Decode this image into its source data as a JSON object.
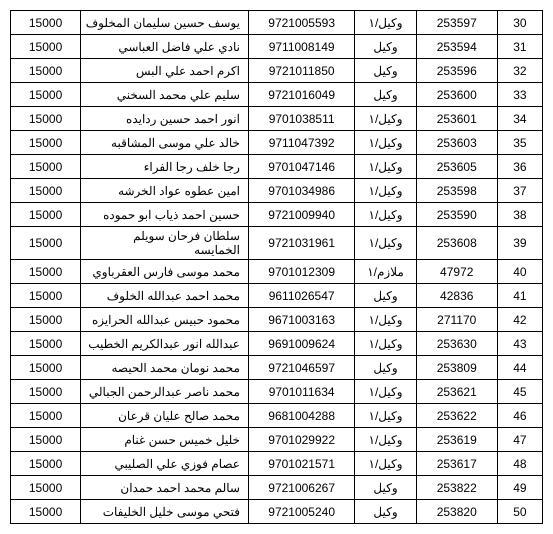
{
  "rows": [
    {
      "seq": "30",
      "id": "253597",
      "rank": "وكيل/١",
      "num": "9721005593",
      "name": "يوسف حسين سليمان المخلوف",
      "amt": "15000"
    },
    {
      "seq": "31",
      "id": "253594",
      "rank": "وكيل",
      "num": "9711008149",
      "name": "نادي علي فاضل العباسي",
      "amt": "15000"
    },
    {
      "seq": "32",
      "id": "253596",
      "rank": "وكيل",
      "num": "9721011850",
      "name": "اكرم احمد علي البس",
      "amt": "15000"
    },
    {
      "seq": "33",
      "id": "253600",
      "rank": "وكيل",
      "num": "9721016049",
      "name": "سليم علي محمد السخني",
      "amt": "15000"
    },
    {
      "seq": "34",
      "id": "253601",
      "rank": "وكيل/١",
      "num": "9701038511",
      "name": "انور احمد حسين ردايده",
      "amt": "15000"
    },
    {
      "seq": "35",
      "id": "253603",
      "rank": "وكيل/١",
      "num": "9711047392",
      "name": "خالد علي موسى المشاقبه",
      "amt": "15000"
    },
    {
      "seq": "36",
      "id": "253605",
      "rank": "وكيل/١",
      "num": "9701047146",
      "name": "رجا خلف رجا الفراء",
      "amt": "15000"
    },
    {
      "seq": "37",
      "id": "253598",
      "rank": "وكيل/١",
      "num": "9701034986",
      "name": "امين عطوه عواد الخرشه",
      "amt": "15000"
    },
    {
      "seq": "38",
      "id": "253590",
      "rank": "وكيل/١",
      "num": "9721009940",
      "name": "حسين احمد ذياب ابو حموده",
      "amt": "15000"
    },
    {
      "seq": "39",
      "id": "253608",
      "rank": "وكيل/١",
      "num": "9721031961",
      "name": "سلطان فرحان سويلم الخمايسه",
      "amt": "15000"
    },
    {
      "seq": "40",
      "id": "47972",
      "rank": "ملازم/١",
      "num": "9701012309",
      "name": "محمد موسى فارس العقرباوي",
      "amt": "15000"
    },
    {
      "seq": "41",
      "id": "42836",
      "rank": "وكيل",
      "num": "9611026547",
      "name": "محمد احمد عبدالله الخلوف",
      "amt": "15000"
    },
    {
      "seq": "42",
      "id": "271170",
      "rank": "وكيل/١",
      "num": "9671003163",
      "name": "محمود حبيس عبدالله الحرايزه",
      "amt": "15000"
    },
    {
      "seq": "43",
      "id": "253630",
      "rank": "وكيل/١",
      "num": "9691009624",
      "name": "عبدالله انور عبدالكريم الخطيب",
      "amt": "15000"
    },
    {
      "seq": "44",
      "id": "253809",
      "rank": "وكيل",
      "num": "9721046597",
      "name": "محمد نومان محمد الحيصه",
      "amt": "15000"
    },
    {
      "seq": "45",
      "id": "253621",
      "rank": "وكيل/١",
      "num": "9701011634",
      "name": "محمد ناصر عبدالرحمن الجبالي",
      "amt": "15000"
    },
    {
      "seq": "46",
      "id": "253622",
      "rank": "وكيل/١",
      "num": "9681004288",
      "name": "محمد صالح عليان قرعان",
      "amt": "15000"
    },
    {
      "seq": "47",
      "id": "253619",
      "rank": "وكيل/١",
      "num": "9701029922",
      "name": "خليل خميس حسن غنام",
      "amt": "15000"
    },
    {
      "seq": "48",
      "id": "253617",
      "rank": "وكيل/١",
      "num": "9701021571",
      "name": "عصام فوزي علي الصليبي",
      "amt": "15000"
    },
    {
      "seq": "49",
      "id": "253822",
      "rank": "وكيل",
      "num": "9721006267",
      "name": "سالم محمد احمد حمدان",
      "amt": "15000"
    },
    {
      "seq": "50",
      "id": "253820",
      "rank": "وكيل",
      "num": "9721005240",
      "name": "فتحي موسى خليل الخليفات",
      "amt": "15000"
    }
  ]
}
